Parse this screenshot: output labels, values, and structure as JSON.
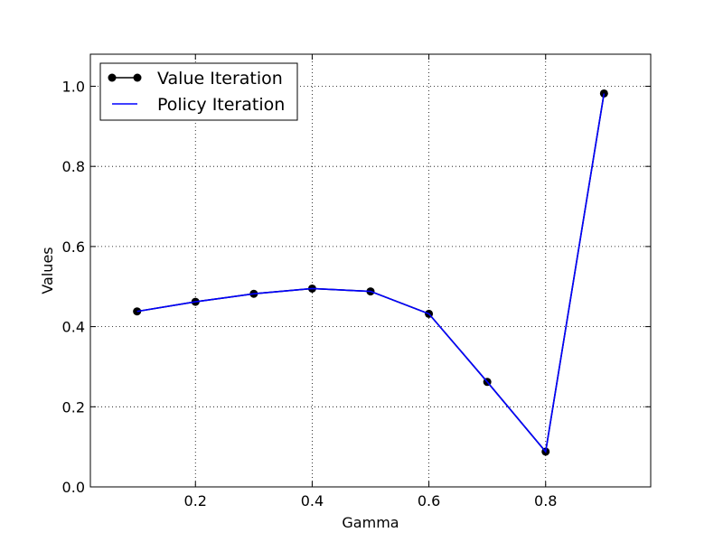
{
  "chart_data": {
    "type": "line",
    "title": "",
    "xlabel": "Gamma",
    "ylabel": "Values",
    "xlim": [
      0.02,
      0.98
    ],
    "ylim": [
      0.0,
      1.08
    ],
    "xticks": [
      0.2,
      0.4,
      0.6,
      0.8
    ],
    "xtick_labels": [
      "0.2",
      "0.4",
      "0.6",
      "0.8"
    ],
    "yticks": [
      0.0,
      0.2,
      0.4,
      0.6,
      0.8,
      1.0
    ],
    "ytick_labels": [
      "0.0",
      "0.2",
      "0.4",
      "0.6",
      "0.8",
      "1.0"
    ],
    "grid": true,
    "legend_position": "top-left",
    "x": [
      0.1,
      0.2,
      0.3,
      0.4,
      0.5,
      0.6,
      0.7,
      0.8,
      0.9
    ],
    "series": [
      {
        "name": "Value Iteration",
        "color": "#000000",
        "marker": "circle",
        "values": [
          0.438,
          0.462,
          0.482,
          0.495,
          0.488,
          0.432,
          0.262,
          0.088,
          0.982
        ]
      },
      {
        "name": "Policy Iteration",
        "color": "#0000ff",
        "marker": "none",
        "values": [
          0.438,
          0.462,
          0.482,
          0.495,
          0.488,
          0.432,
          0.262,
          0.088,
          0.982
        ]
      }
    ]
  }
}
